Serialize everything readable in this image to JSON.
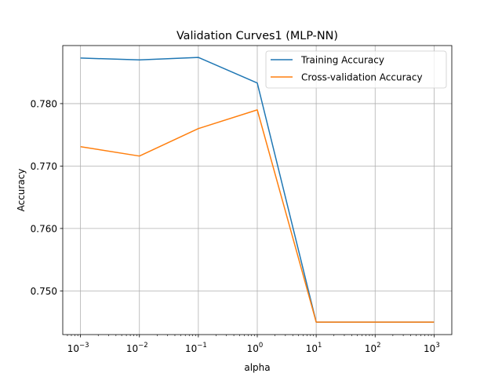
{
  "chart_data": {
    "type": "line",
    "title": "Validation Curves1 (MLP-NN)",
    "xlabel": "alpha",
    "ylabel": "Accuracy",
    "x_scale": "log",
    "x": [
      0.001,
      0.01,
      0.1,
      1,
      10,
      100,
      1000
    ],
    "x_tick_labels": [
      {
        "base": "10",
        "exp": "−3"
      },
      {
        "base": "10",
        "exp": "−2"
      },
      {
        "base": "10",
        "exp": "−1"
      },
      {
        "base": "10",
        "exp": "0"
      },
      {
        "base": "10",
        "exp": "1"
      },
      {
        "base": "10",
        "exp": "2"
      },
      {
        "base": "10",
        "exp": "3"
      }
    ],
    "y_ticks": [
      0.75,
      0.76,
      0.77,
      0.78
    ],
    "y_tick_labels": [
      "0.750",
      "0.760",
      "0.770",
      "0.780"
    ],
    "xlim": [
      0.0005,
      2000
    ],
    "ylim": [
      0.743,
      0.7893
    ],
    "grid": true,
    "legend_position": "top-right",
    "series": [
      {
        "name": "Training Accuracy",
        "color": "#1f77b4",
        "values": [
          0.7873,
          0.787,
          0.7874,
          0.7833,
          0.745,
          0.745,
          0.745
        ]
      },
      {
        "name": "Cross-validation Accuracy",
        "color": "#ff7f0e",
        "values": [
          0.7731,
          0.7716,
          0.776,
          0.779,
          0.745,
          0.745,
          0.745
        ]
      }
    ]
  }
}
